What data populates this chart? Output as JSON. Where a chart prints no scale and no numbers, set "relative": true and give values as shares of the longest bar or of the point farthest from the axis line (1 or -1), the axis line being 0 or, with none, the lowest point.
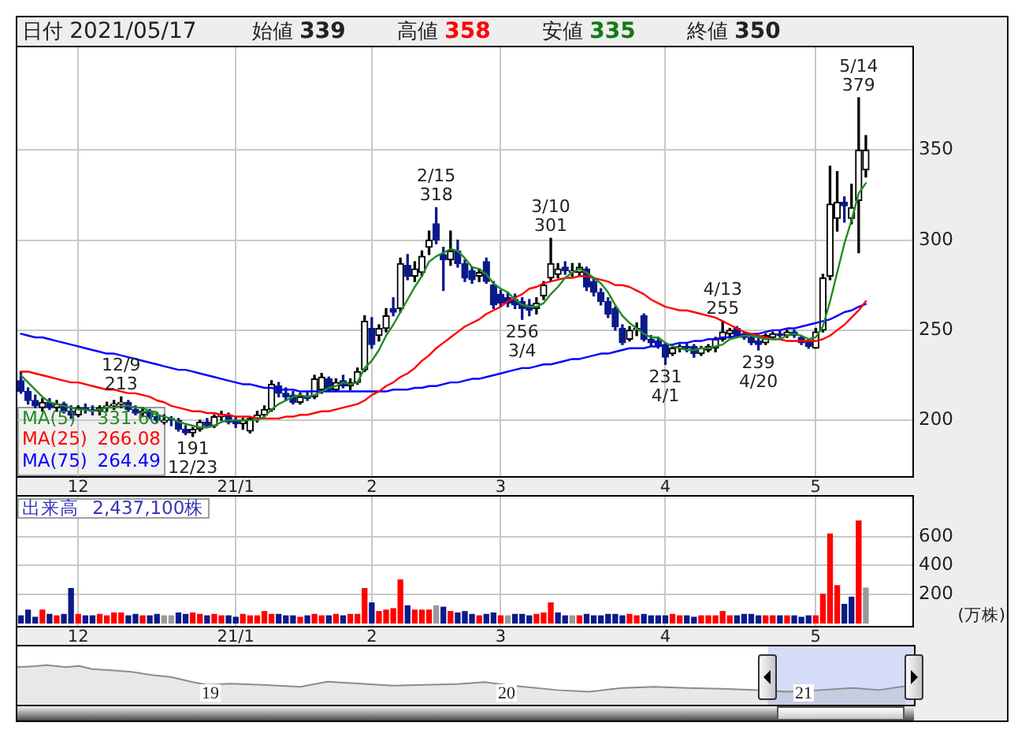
{
  "chart_data": [
    {
      "type": "other",
      "annotations": [
        "日付 2021/05/17",
        "始値 339",
        "高値 358",
        "安値 335",
        "終値 350"
      ]
    },
    {
      "type": "candlestick",
      "categories": [
        null,
        null,
        null,
        null,
        null,
        null,
        null,
        null,
        "12",
        null,
        null,
        null,
        null,
        null,
        null,
        null,
        null,
        null,
        null,
        null,
        null,
        null,
        null,
        null,
        null,
        null,
        null,
        null,
        null,
        null,
        "21/1",
        null,
        null,
        null,
        null,
        null,
        null,
        null,
        null,
        null,
        null,
        null,
        null,
        null,
        null,
        null,
        null,
        null,
        null,
        "2",
        null,
        null,
        null,
        null,
        null,
        null,
        null,
        null,
        null,
        null,
        null,
        null,
        null,
        null,
        null,
        null,
        null,
        "3",
        null,
        null,
        null,
        null,
        null,
        null,
        null,
        null,
        null,
        null,
        null,
        null,
        null,
        null,
        null,
        null,
        null,
        null,
        null,
        null,
        null,
        null,
        "4",
        null,
        null,
        null,
        null,
        null,
        null,
        null,
        null,
        null,
        null,
        null,
        null,
        null,
        null,
        null,
        null,
        null,
        null,
        null,
        null,
        "5",
        null,
        null,
        null,
        null,
        null,
        null,
        null,
        null,
        null,
        null,
        null,
        null,
        null
      ],
      "ohlc": [
        [
          222,
          227,
          215,
          216
        ],
        [
          216,
          218,
          209,
          211
        ],
        [
          211,
          214,
          207,
          208
        ],
        [
          207,
          212,
          205,
          210
        ],
        [
          210,
          212,
          206,
          207
        ],
        [
          207,
          211,
          205,
          209
        ],
        [
          209,
          210,
          204,
          205
        ],
        [
          205,
          208,
          201,
          203
        ],
        [
          203,
          208,
          202,
          207
        ],
        [
          207,
          209,
          204,
          206
        ],
        [
          206,
          208,
          203,
          205
        ],
        [
          205,
          208,
          203,
          207
        ],
        [
          207,
          210,
          205,
          208
        ],
        [
          208,
          211,
          206,
          209
        ],
        [
          209,
          213,
          207,
          210
        ],
        [
          210,
          211,
          205,
          206
        ],
        [
          206,
          208,
          203,
          204
        ],
        [
          204,
          207,
          202,
          205
        ],
        [
          205,
          206,
          201,
          202
        ],
        [
          202,
          204,
          199,
          200
        ],
        [
          199,
          203,
          198,
          200
        ],
        [
          201,
          202,
          197,
          200
        ],
        [
          200,
          201,
          194,
          195
        ],
        [
          195,
          197,
          192,
          193
        ],
        [
          193,
          196,
          191,
          195
        ],
        [
          195,
          200,
          194,
          199
        ],
        [
          199,
          201,
          196,
          197
        ],
        [
          197,
          203,
          196,
          202
        ],
        [
          202,
          205,
          200,
          203
        ],
        [
          203,
          204,
          198,
          199
        ],
        [
          200,
          202,
          196,
          198
        ],
        [
          198,
          201,
          195,
          200
        ],
        [
          194,
          202,
          193,
          201
        ],
        [
          201,
          205,
          199,
          203
        ],
        [
          203,
          208,
          202,
          206
        ],
        [
          206,
          222,
          205,
          220
        ],
        [
          219,
          221,
          213,
          215
        ],
        [
          215,
          218,
          211,
          213
        ],
        [
          214,
          216,
          209,
          210
        ],
        [
          210,
          215,
          209,
          213
        ],
        [
          213,
          216,
          211,
          212
        ],
        [
          213,
          225,
          212,
          223
        ],
        [
          217,
          226,
          215,
          224
        ],
        [
          223,
          224,
          216,
          217
        ],
        [
          217,
          223,
          216,
          221
        ],
        [
          222,
          225,
          218,
          219
        ],
        [
          219,
          223,
          217,
          221
        ],
        [
          221,
          229,
          220,
          227
        ],
        [
          228,
          258,
          227,
          255
        ],
        [
          251,
          257,
          240,
          242
        ],
        [
          247,
          253,
          244,
          251
        ],
        [
          251,
          262,
          249,
          258
        ],
        [
          262,
          268,
          258,
          260
        ],
        [
          262,
          290,
          260,
          287
        ],
        [
          286,
          292,
          278,
          280
        ],
        [
          280,
          288,
          277,
          284
        ],
        [
          282,
          294,
          280,
          291
        ],
        [
          296,
          305,
          292,
          300
        ],
        [
          309,
          318,
          298,
          300
        ],
        [
          292,
          296,
          272,
          289
        ],
        [
          289,
          305,
          286,
          294
        ],
        [
          294,
          300,
          285,
          287
        ],
        [
          287,
          289,
          277,
          279
        ],
        [
          283,
          285,
          276,
          278
        ],
        [
          280,
          284,
          277,
          282
        ],
        [
          288,
          290,
          276,
          277
        ],
        [
          275,
          277,
          262,
          264
        ],
        [
          270,
          272,
          263,
          265
        ],
        [
          268,
          271,
          263,
          265
        ],
        [
          267,
          270,
          262,
          264
        ],
        [
          266,
          268,
          256,
          262
        ],
        [
          264,
          267,
          258,
          261
        ],
        [
          262,
          268,
          259,
          265
        ],
        [
          269,
          277,
          267,
          275
        ],
        [
          279,
          301,
          277,
          287
        ],
        [
          281,
          287,
          279,
          284
        ],
        [
          285,
          288,
          281,
          283
        ],
        [
          282,
          287,
          280,
          283
        ],
        [
          282,
          287,
          280,
          285
        ],
        [
          284,
          285,
          272,
          274
        ],
        [
          277,
          279,
          269,
          271
        ],
        [
          271,
          273,
          264,
          266
        ],
        [
          266,
          268,
          257,
          259
        ],
        [
          262,
          263,
          250,
          252
        ],
        [
          251,
          253,
          242,
          243
        ],
        [
          245,
          252,
          244,
          250
        ],
        [
          250,
          254,
          247,
          251
        ],
        [
          258,
          259,
          244,
          245
        ],
        [
          245,
          247,
          241,
          243
        ],
        [
          244,
          246,
          240,
          241
        ],
        [
          242,
          243,
          231,
          235
        ],
        [
          237,
          241,
          236,
          240
        ],
        [
          240,
          242,
          238,
          241
        ],
        [
          241,
          243,
          238,
          240
        ],
        [
          241,
          242,
          235,
          237
        ],
        [
          237,
          241,
          236,
          240
        ],
        [
          239,
          242,
          238,
          241
        ],
        [
          240,
          246,
          238,
          245
        ],
        [
          245,
          255,
          244,
          249
        ],
        [
          248,
          251,
          246,
          250
        ],
        [
          251,
          252,
          246,
          247
        ],
        [
          248,
          249,
          245,
          246
        ],
        [
          246,
          248,
          242,
          243
        ],
        [
          244,
          246,
          239,
          242
        ],
        [
          243,
          248,
          242,
          247
        ],
        [
          246,
          249,
          245,
          248
        ],
        [
          248,
          250,
          246,
          247
        ],
        [
          247,
          250,
          246,
          249
        ],
        [
          249,
          250,
          246,
          247
        ],
        [
          246,
          247,
          242,
          243
        ],
        [
          244,
          245,
          240,
          241
        ],
        [
          240,
          251,
          240,
          249
        ],
        [
          250,
          281,
          249,
          279
        ],
        [
          280,
          341,
          278,
          320
        ],
        [
          312,
          338,
          305,
          321
        ],
        [
          321,
          324,
          310,
          319
        ],
        [
          312,
          331,
          309,
          318
        ],
        [
          322,
          379,
          293,
          350
        ],
        [
          339,
          358,
          335,
          350
        ],
        null,
        null,
        null,
        null,
        null,
        null
      ],
      "series": [
        {
          "name": "MA(5) 331.60",
          "type": "line",
          "color": "#228b22",
          "values": [
            225,
            221,
            217,
            213,
            210,
            209,
            208,
            207,
            206,
            206,
            205,
            206,
            207,
            207,
            208,
            208,
            207,
            207,
            205,
            203,
            202,
            201,
            199,
            198,
            197,
            196,
            196,
            197,
            199,
            200,
            200,
            200,
            200,
            200,
            202,
            206,
            209,
            211,
            213,
            214,
            213,
            214,
            216,
            218,
            219,
            221,
            220,
            221,
            229,
            233,
            239,
            247,
            253,
            260,
            267,
            274,
            280,
            288,
            291,
            293,
            295,
            294,
            290,
            285,
            284,
            281,
            276,
            273,
            271,
            267,
            264,
            263,
            263,
            265,
            270,
            274,
            279,
            282,
            284,
            282,
            279,
            276,
            271,
            264,
            258,
            254,
            251,
            248,
            246,
            246,
            243,
            241,
            240,
            239,
            239,
            240,
            240,
            241,
            242,
            245,
            246,
            247,
            247,
            246,
            245,
            245,
            245,
            247,
            248,
            247,
            245,
            246,
            252,
            266,
            282,
            298,
            311,
            326,
            331.6,
            null,
            null,
            null,
            null,
            null,
            null
          ]
        },
        {
          "name": "MA(25) 266.08",
          "type": "line",
          "color": "#ff0000",
          "values": [
            227,
            227,
            226,
            225,
            224,
            223,
            222,
            221,
            221,
            220,
            219,
            218,
            217,
            217,
            216,
            215,
            215,
            214,
            213,
            211,
            210,
            208,
            207,
            206,
            205,
            205,
            204,
            204,
            203,
            203,
            202,
            202,
            202,
            201,
            201,
            201,
            201,
            202,
            202,
            203,
            203,
            204,
            205,
            205,
            206,
            207,
            208,
            209,
            211,
            214,
            216,
            219,
            221,
            224,
            226,
            229,
            233,
            236,
            240,
            243,
            246,
            249,
            252,
            254,
            256,
            259,
            261,
            263,
            266,
            268,
            270,
            273,
            274,
            276,
            277,
            278,
            279,
            279,
            280,
            280,
            279,
            278,
            277,
            275,
            275,
            274,
            272,
            270,
            267,
            265,
            263,
            262,
            261,
            261,
            260,
            259,
            258,
            257,
            255,
            253,
            251,
            249,
            248,
            247,
            246,
            245,
            245,
            244,
            244,
            244,
            244,
            244,
            245,
            247,
            250,
            253,
            257,
            261,
            266.08,
            null,
            null,
            null,
            null,
            null,
            null
          ]
        },
        {
          "name": "MA(75) 264.49",
          "type": "line",
          "color": "#0000ff",
          "values": [
            248,
            247,
            246,
            246,
            245,
            244,
            243,
            242,
            241,
            240,
            239,
            238,
            237,
            237,
            236,
            235,
            234,
            233,
            232,
            231,
            230,
            229,
            228,
            228,
            227,
            226,
            225,
            224,
            223,
            222,
            221,
            220,
            220,
            219,
            218,
            218,
            217,
            217,
            217,
            216,
            216,
            216,
            216,
            216,
            216,
            216,
            216,
            216,
            216,
            216,
            216,
            216,
            217,
            217,
            217,
            218,
            218,
            219,
            219,
            220,
            221,
            221,
            222,
            223,
            223,
            224,
            225,
            226,
            227,
            228,
            229,
            229,
            230,
            231,
            231,
            232,
            233,
            234,
            234,
            235,
            236,
            237,
            237,
            238,
            239,
            240,
            240,
            240,
            241,
            241,
            242,
            242,
            243,
            243,
            244,
            244,
            245,
            245,
            246,
            246,
            247,
            247,
            248,
            248,
            249,
            250,
            250,
            251,
            251,
            252,
            253,
            254,
            255,
            256,
            258,
            260,
            261,
            263,
            264.49,
            null,
            null,
            null,
            null,
            null,
            null
          ]
        }
      ],
      "ylim": [
        169,
        407
      ],
      "yticks": [
        200,
        250,
        300,
        350
      ],
      "grid": true,
      "legend": "bottom left",
      "annotations": [
        {
          "text": "12/9\n213",
          "y": 213
        },
        {
          "text": "191\n12/23",
          "y": 191
        },
        {
          "text": "2/15\n318",
          "y": 318
        },
        {
          "text": "256\n3/4",
          "y": 256
        },
        {
          "text": "3/10\n301",
          "y": 301
        },
        {
          "text": "231\n4/1",
          "y": 231
        },
        {
          "text": "4/13\n255",
          "y": 255
        },
        {
          "text": "239\n4/20",
          "y": 239
        },
        {
          "text": "5/14\n379",
          "y": 379
        }
      ]
    },
    {
      "type": "bar",
      "categories": [
        null,
        null,
        null,
        null,
        null,
        null,
        null,
        null,
        "12",
        null,
        null,
        null,
        null,
        null,
        null,
        null,
        null,
        null,
        null,
        null,
        null,
        null,
        null,
        null,
        null,
        null,
        null,
        null,
        null,
        null,
        "21/1",
        null,
        null,
        null,
        null,
        null,
        null,
        null,
        null,
        null,
        null,
        null,
        null,
        null,
        null,
        null,
        null,
        null,
        null,
        "2",
        null,
        null,
        null,
        null,
        null,
        null,
        null,
        null,
        null,
        null,
        null,
        null,
        null,
        null,
        null,
        null,
        null,
        "3",
        null,
        null,
        null,
        null,
        null,
        null,
        null,
        null,
        null,
        null,
        null,
        null,
        null,
        null,
        null,
        null,
        null,
        null,
        null,
        null,
        null,
        null,
        "4",
        null,
        null,
        null,
        null,
        null,
        null,
        null,
        null,
        null,
        null,
        null,
        null,
        null,
        null,
        null,
        null,
        null,
        null,
        null,
        null,
        "5",
        null,
        null,
        null,
        null,
        null,
        null,
        null,
        null,
        null,
        null,
        null,
        null,
        null
      ],
      "values": [
        50,
        90,
        40,
        90,
        60,
        50,
        60,
        240,
        60,
        50,
        50,
        60,
        50,
        70,
        70,
        50,
        60,
        50,
        50,
        60,
        50,
        50,
        70,
        60,
        70,
        60,
        50,
        60,
        50,
        50,
        40,
        60,
        50,
        50,
        80,
        60,
        60,
        50,
        50,
        40,
        50,
        60,
        50,
        50,
        60,
        50,
        60,
        60,
        240,
        140,
        80,
        90,
        100,
        300,
        120,
        90,
        90,
        90,
        120,
        110,
        80,
        70,
        80,
        60,
        50,
        60,
        70,
        50,
        50,
        60,
        60,
        50,
        60,
        70,
        140,
        70,
        50,
        50,
        50,
        60,
        50,
        50,
        60,
        60,
        50,
        60,
        50,
        60,
        50,
        50,
        50,
        60,
        50,
        50,
        40,
        50,
        50,
        50,
        80,
        50,
        50,
        60,
        60,
        50,
        50,
        50,
        50,
        50,
        50,
        40,
        50,
        50,
        200,
        620,
        260,
        130,
        180,
        710,
        243.71,
        null,
        null,
        null,
        null,
        null,
        null
      ],
      "colors": [
        "#0a1a8a",
        "#0a1a8a",
        "#0a1a8a",
        "#ff0000",
        "#0a1a8a",
        "#ff0000",
        "#0a1a8a",
        "#0a1a8a",
        "#ff0000",
        "#0a1a8a",
        "#0a1a8a",
        "#ff0000",
        "#ff0000",
        "#ff0000",
        "#ff0000",
        "#0a1a8a",
        "#0a1a8a",
        "#ff0000",
        "#0a1a8a",
        "#0a1a8a",
        "#999999",
        "#999999",
        "#0a1a8a",
        "#0a1a8a",
        "#ff0000",
        "#ff0000",
        "#0a1a8a",
        "#ff0000",
        "#ff0000",
        "#0a1a8a",
        "#0a1a8a",
        "#ff0000",
        "#ff0000",
        "#ff0000",
        "#ff0000",
        "#ff0000",
        "#0a1a8a",
        "#0a1a8a",
        "#0a1a8a",
        "#ff0000",
        "#0a1a8a",
        "#ff0000",
        "#ff0000",
        "#0a1a8a",
        "#ff0000",
        "#0a1a8a",
        "#ff0000",
        "#ff0000",
        "#ff0000",
        "#0a1a8a",
        "#ff0000",
        "#ff0000",
        "#ff0000",
        "#ff0000",
        "#0a1a8a",
        "#ff0000",
        "#ff0000",
        "#ff0000",
        "#999999",
        "#0a1a8a",
        "#ff0000",
        "#0a1a8a",
        "#0a1a8a",
        "#0a1a8a",
        "#ff0000",
        "#0a1a8a",
        "#0a1a8a",
        "#ff0000",
        "#999999",
        "#0a1a8a",
        "#0a1a8a",
        "#0a1a8a",
        "#ff0000",
        "#ff0000",
        "#ff0000",
        "#0a1a8a",
        "#0a1a8a",
        "#999999",
        "#ff0000",
        "#0a1a8a",
        "#0a1a8a",
        "#0a1a8a",
        "#0a1a8a",
        "#0a1a8a",
        "#0a1a8a",
        "#ff0000",
        "#ff0000",
        "#0a1a8a",
        "#0a1a8a",
        "#0a1a8a",
        "#0a1a8a",
        "#ff0000",
        "#ff0000",
        "#0a1a8a",
        "#0a1a8a",
        "#ff0000",
        "#ff0000",
        "#ff0000",
        "#ff0000",
        "#ff0000",
        "#0a1a8a",
        "#0a1a8a",
        "#0a1a8a",
        "#0a1a8a",
        "#ff0000",
        "#ff0000",
        "#0a1a8a",
        "#ff0000",
        "#0a1a8a",
        "#0a1a8a",
        "#0a1a8a",
        "#ff0000",
        "#ff0000",
        "#ff0000",
        "#ff0000",
        "#0a1a8a",
        "#0a1a8a",
        "#ff0000",
        "#999999",
        null,
        null,
        null,
        null,
        null,
        null
      ],
      "ylim": [
        -20,
        880
      ],
      "yticks": [
        200,
        400,
        600
      ],
      "ylabel": "(万株)",
      "grid": true,
      "annotations": [
        "出来高 2,437,100株"
      ]
    },
    {
      "type": "area",
      "relative": true,
      "color": "#8c8c8c",
      "x": [
        "2018-05-08",
        "2018-05-28",
        "2018-06-13",
        "2018-07-07",
        "2018-07-23",
        "2018-08-08",
        "2018-09-01",
        "2018-09-26",
        "2018-10-20",
        "2018-11-13",
        "2018-12-08",
        "2018-12-28",
        "2019-01-25",
        "2019-03-06",
        "2019-04-22",
        "2019-05-25",
        "2019-07-05",
        "2019-08-14",
        "2019-09-23",
        "2019-11-02",
        "2019-12-05",
        "2019-12-30",
        "2020-01-23",
        "2020-03-03",
        "2020-04-12",
        "2020-05-22",
        "2020-07-01",
        "2020-08-11",
        "2020-09-22",
        "2020-11-01",
        "2020-12-12",
        "2021-01-21",
        "2021-03-03",
        "2021-04-04",
        "2021-05-07"
      ],
      "values": [
        0.95,
        0.97,
        1,
        0.95,
        0.98,
        0.9,
        0.87,
        0.83,
        0.75,
        0.7,
        0.58,
        0.5,
        0.53,
        0.5,
        0.45,
        0.58,
        0.53,
        0.48,
        0.5,
        0.52,
        0.57,
        0.5,
        0.45,
        0.37,
        0.33,
        0.42,
        0.45,
        0.42,
        0.4,
        0.37,
        0.33,
        0.37,
        0.42,
        0.37,
        0.47
      ],
      "xlim": [
        "2018-05-08",
        "2021-05-17"
      ],
      "xticks": [
        {
          "value": "2019-01-01",
          "label": "19"
        },
        {
          "value": "2020-01-01",
          "label": "20"
        },
        {
          "value": "2021-01-01",
          "label": "21"
        }
      ],
      "bands": [
        {
          "axis": "x",
          "from": "2020-11-18",
          "to": "2021-05-17",
          "color": "#b3c0f2"
        }
      ]
    }
  ]
}
